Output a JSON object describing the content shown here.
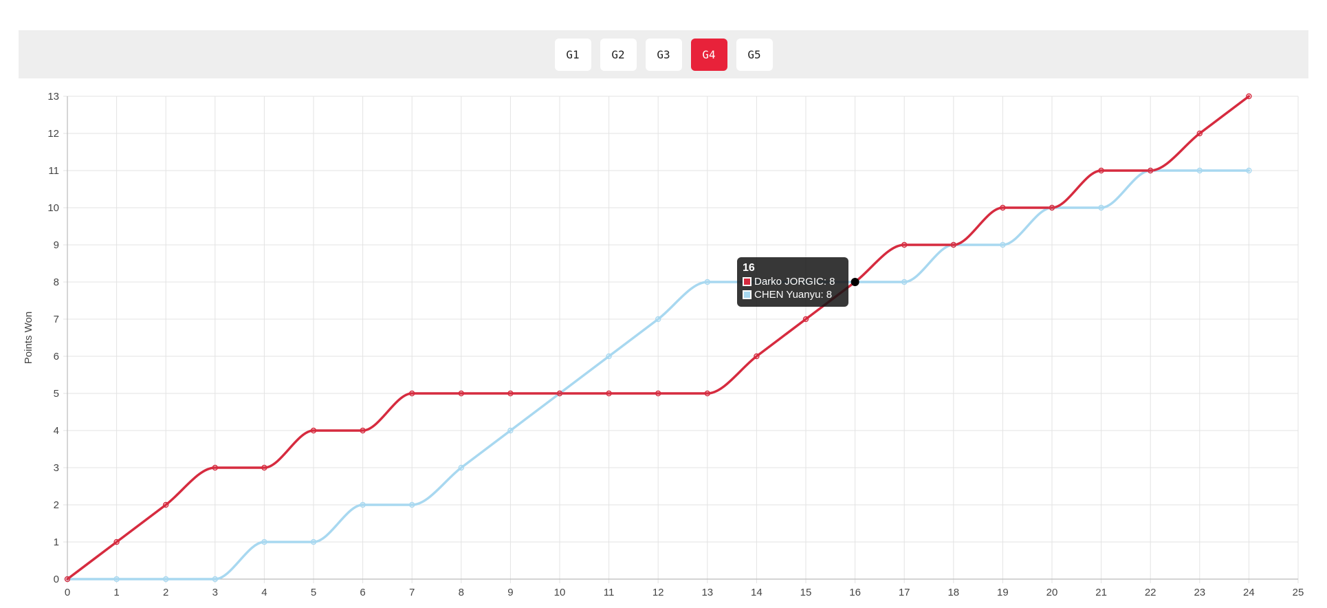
{
  "game_tabs": [
    {
      "label": "G1",
      "active": false
    },
    {
      "label": "G2",
      "active": false
    },
    {
      "label": "G3",
      "active": false
    },
    {
      "label": "G4",
      "active": true
    },
    {
      "label": "G5",
      "active": false
    }
  ],
  "colors": {
    "accent": "#e8223a",
    "series_red": "#d62b3f",
    "series_blue": "#a8d8f0",
    "grid": "#e3e3e3",
    "tab_bar_bg": "#eeeeee"
  },
  "chart_data": {
    "type": "line",
    "ylabel": "Points Won",
    "xlabel": "",
    "xlim": [
      0,
      25
    ],
    "ylim": [
      0,
      13
    ],
    "x_ticks": [
      0,
      1,
      2,
      3,
      4,
      5,
      6,
      7,
      8,
      9,
      10,
      11,
      12,
      13,
      14,
      15,
      16,
      17,
      18,
      19,
      20,
      21,
      22,
      23,
      24,
      25
    ],
    "y_ticks": [
      0,
      1,
      2,
      3,
      4,
      5,
      6,
      7,
      8,
      9,
      10,
      11,
      12,
      13
    ],
    "grid": true,
    "x": [
      0,
      1,
      2,
      3,
      4,
      5,
      6,
      7,
      8,
      9,
      10,
      11,
      12,
      13,
      14,
      15,
      16,
      17,
      18,
      19,
      20,
      21,
      22,
      23,
      24
    ],
    "series": [
      {
        "name": "Darko JORGIC",
        "color": "#d62b3f",
        "values": [
          0,
          1,
          2,
          3,
          3,
          4,
          4,
          5,
          5,
          5,
          5,
          5,
          5,
          5,
          6,
          7,
          8,
          9,
          9,
          10,
          10,
          11,
          11,
          12,
          13
        ]
      },
      {
        "name": "CHEN Yuanyu",
        "color": "#a8d8f0",
        "values": [
          0,
          0,
          0,
          0,
          1,
          1,
          2,
          2,
          3,
          4,
          5,
          6,
          7,
          8,
          8,
          8,
          8,
          8,
          9,
          9,
          10,
          10,
          11,
          11,
          11
        ]
      }
    ],
    "tooltip": {
      "title": "16",
      "x": 16,
      "rows": [
        {
          "label": "Darko JORGIC: 8",
          "color": "#d62b3f"
        },
        {
          "label": "CHEN Yuanyu: 8",
          "color": "#a8d8f0"
        }
      ]
    }
  }
}
